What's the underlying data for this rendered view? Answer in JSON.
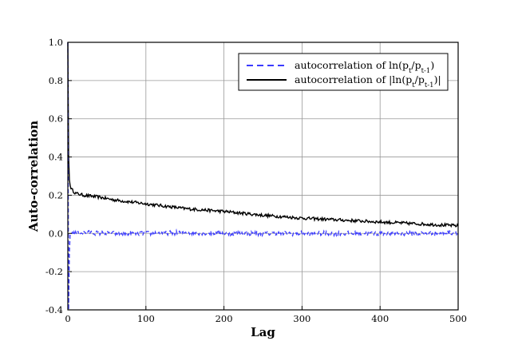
{
  "chart_data": {
    "type": "line",
    "title": "",
    "xlabel": "Lag",
    "ylabel": "Auto-correlation",
    "xlim": [
      0,
      500
    ],
    "ylim": [
      -0.4,
      1.0
    ],
    "xticks": [
      "0",
      "100",
      "200",
      "300",
      "400",
      "500"
    ],
    "yticks": [
      "-0.4",
      "-0.2",
      "0.0",
      "0.2",
      "0.4",
      "0.6",
      "0.8",
      "1.0"
    ],
    "grid": true,
    "legend_position": "top-right",
    "series": [
      {
        "name_html": "autocorrelation of ln(p<tspan baseline-shift=\"sub\" font-size=\"8.5\">t</tspan>/p<tspan baseline-shift=\"sub\" font-size=\"8.5\">t-1</tspan>)",
        "name": "autocorrelation of ln(pt/pt-1)",
        "color": "#3b3bff",
        "style": "dashed",
        "x": [
          0,
          1,
          2,
          3,
          5,
          10,
          20,
          50,
          100,
          150,
          200,
          250,
          300,
          350,
          400,
          450,
          500
        ],
        "values": [
          1.0,
          -0.4,
          -0.1,
          0.0,
          0.005,
          0.0,
          0.005,
          0.0,
          0.0,
          0.005,
          0.0,
          0.0,
          0.0,
          0.0,
          0.0,
          0.0,
          0.005
        ],
        "noise_amplitude": 0.012
      },
      {
        "name": "autocorrelation of |ln(pt/pt-1)|",
        "color": "#000000",
        "style": "solid",
        "x": [
          0,
          1,
          2,
          3,
          5,
          10,
          20,
          40,
          60,
          100,
          150,
          200,
          250,
          300,
          350,
          400,
          450,
          500
        ],
        "values": [
          1.0,
          0.4,
          0.28,
          0.25,
          0.23,
          0.21,
          0.2,
          0.19,
          0.175,
          0.155,
          0.13,
          0.115,
          0.095,
          0.08,
          0.07,
          0.06,
          0.05,
          0.04
        ],
        "noise_amplitude": 0.008
      }
    ]
  },
  "legend": {
    "entry1": {
      "prefix": "autocorrelation of ln(p",
      "sub1": "t",
      "mid": "/p",
      "sub2": "t-1",
      "suffix": ")"
    },
    "entry2": {
      "prefix": "autocorrelation of |ln(p",
      "sub1": "t",
      "mid": "/p",
      "sub2": "t-1",
      "suffix": ")|"
    }
  }
}
